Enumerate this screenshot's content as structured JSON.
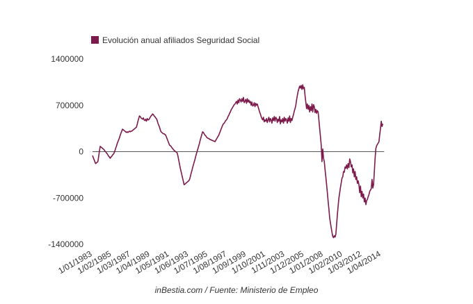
{
  "chart_data": {
    "type": "line",
    "series": [
      {
        "name": "Evolución anual afiliados Seguridad Social",
        "color": "#7b1a4b",
        "values": [
          -60000,
          -90000,
          -120000,
          -150000,
          -180000,
          -170000,
          -160000,
          -150000,
          -70000,
          10000,
          80000,
          70000,
          60000,
          50000,
          40000,
          30000,
          10000,
          0,
          -20000,
          -30000,
          -50000,
          -70000,
          -80000,
          -100000,
          -80000,
          -70000,
          -50000,
          -40000,
          -20000,
          10000,
          50000,
          80000,
          120000,
          150000,
          180000,
          210000,
          250000,
          280000,
          310000,
          340000,
          330000,
          320000,
          310000,
          300000,
          290000,
          300000,
          290000,
          300000,
          310000,
          300000,
          310000,
          310000,
          320000,
          330000,
          340000,
          350000,
          360000,
          370000,
          410000,
          460000,
          500000,
          540000,
          530000,
          510000,
          500000,
          490000,
          510000,
          480000,
          470000,
          490000,
          460000,
          500000,
          480000,
          480000,
          500000,
          520000,
          540000,
          550000,
          570000,
          560000,
          540000,
          530000,
          510000,
          500000,
          470000,
          430000,
          400000,
          370000,
          330000,
          300000,
          290000,
          280000,
          270000,
          270000,
          260000,
          250000,
          220000,
          190000,
          160000,
          130000,
          100000,
          90000,
          80000,
          60000,
          50000,
          30000,
          20000,
          10000,
          0,
          -10000,
          -20000,
          -70000,
          -130000,
          -190000,
          -250000,
          -300000,
          -350000,
          -400000,
          -450000,
          -500000,
          -490000,
          -480000,
          -470000,
          -460000,
          -450000,
          -440000,
          -420000,
          -380000,
          -330000,
          -290000,
          -240000,
          -200000,
          -160000,
          -120000,
          -70000,
          -30000,
          10000,
          50000,
          90000,
          130000,
          180000,
          220000,
          260000,
          300000,
          290000,
          270000,
          250000,
          240000,
          220000,
          210000,
          200000,
          200000,
          190000,
          180000,
          180000,
          170000,
          170000,
          160000,
          160000,
          150000,
          170000,
          190000,
          210000,
          230000,
          250000,
          280000,
          310000,
          340000,
          370000,
          400000,
          420000,
          430000,
          450000,
          470000,
          480000,
          500000,
          530000,
          550000,
          580000,
          600000,
          630000,
          650000,
          670000,
          690000,
          710000,
          720000,
          740000,
          760000,
          720000,
          780000,
          740000,
          800000,
          780000,
          750000,
          800000,
          760000,
          820000,
          740000,
          760000,
          790000,
          730000,
          800000,
          750000,
          780000,
          740000,
          760000,
          700000,
          750000,
          690000,
          700000,
          740000,
          680000,
          730000,
          700000,
          720000,
          680000,
          640000,
          600000,
          570000,
          530000,
          500000,
          480000,
          520000,
          450000,
          480000,
          460000,
          500000,
          440000,
          480000,
          520000,
          450000,
          500000,
          480000,
          430000,
          510000,
          470000,
          530000,
          460000,
          520000,
          500000,
          440000,
          490000,
          460000,
          530000,
          420000,
          480000,
          450000,
          500000,
          430000,
          520000,
          460000,
          500000,
          480000,
          430000,
          510000,
          460000,
          540000,
          440000,
          500000,
          470000,
          520000,
          560000,
          610000,
          650000,
          700000,
          780000,
          850000,
          910000,
          950000,
          990000,
          960000,
          1000000,
          940000,
          1010000,
          950000,
          970000,
          850000,
          750000,
          650000,
          720000,
          640000,
          700000,
          600000,
          680000,
          620000,
          720000,
          600000,
          710000,
          680000,
          590000,
          640000,
          580000,
          620000,
          600000,
          480000,
          350000,
          230000,
          100000,
          -150000,
          40000,
          -100000,
          -150000,
          -270000,
          -380000,
          -500000,
          -620000,
          -750000,
          -870000,
          -1000000,
          -1080000,
          -1150000,
          -1220000,
          -1280000,
          -1300000,
          -1270000,
          -1290000,
          -1250000,
          -1100000,
          -950000,
          -820000,
          -700000,
          -620000,
          -540000,
          -470000,
          -400000,
          -380000,
          -300000,
          -310000,
          -230000,
          -250000,
          -200000,
          -260000,
          -180000,
          -240000,
          -110000,
          -150000,
          -230000,
          -200000,
          -320000,
          -260000,
          -380000,
          -300000,
          -420000,
          -380000,
          -480000,
          -440000,
          -500000,
          -620000,
          -520000,
          -680000,
          -600000,
          -700000,
          -640000,
          -760000,
          -700000,
          -800000,
          -740000,
          -720000,
          -680000,
          -650000,
          -600000,
          -580000,
          -560000,
          -420000,
          -550000,
          -500000,
          -300000,
          -100000,
          50000,
          90000,
          110000,
          130000,
          150000,
          260000,
          350000,
          460000,
          380000,
          420000
        ]
      }
    ],
    "categories": [
      "1/01/1983",
      null,
      null,
      null,
      null,
      null,
      null,
      null,
      null,
      null,
      null,
      null,
      null,
      null,
      null,
      null,
      null,
      null,
      null,
      null,
      null,
      null,
      null,
      null,
      null,
      "1/02/1985",
      null,
      null,
      null,
      null,
      null,
      null,
      null,
      null,
      null,
      null,
      null,
      null,
      null,
      null,
      null,
      null,
      null,
      null,
      null,
      null,
      null,
      null,
      null,
      null,
      "1/03/1987",
      null,
      null,
      null,
      null,
      null,
      null,
      null,
      null,
      null,
      null,
      null,
      null,
      null,
      null,
      null,
      null,
      null,
      null,
      null,
      null,
      null,
      null,
      null,
      null,
      "1/04/1989",
      null,
      null,
      null,
      null,
      null,
      null,
      null,
      null,
      null,
      null,
      null,
      null,
      null,
      null,
      null,
      null,
      null,
      null,
      null,
      null,
      null,
      null,
      null,
      null,
      "1/05/1991",
      null,
      null,
      null,
      null,
      null,
      null,
      null,
      null,
      null,
      null,
      null,
      null,
      null,
      null,
      null,
      null,
      null,
      null,
      null,
      null,
      null,
      null,
      null,
      null,
      "1/06/1993",
      null,
      null,
      null,
      null,
      null,
      null,
      null,
      null,
      null,
      null,
      null,
      null,
      null,
      null,
      null,
      null,
      null,
      null,
      null,
      null,
      null,
      null,
      null,
      null,
      "1/07/1995",
      null,
      null,
      null,
      null,
      null,
      null,
      null,
      null,
      null,
      null,
      null,
      null,
      null,
      null,
      null,
      null,
      null,
      null,
      null,
      null,
      null,
      null,
      null,
      null,
      "1/08/1997",
      null,
      null,
      null,
      null,
      null,
      null,
      null,
      null,
      null,
      null,
      null,
      null,
      null,
      null,
      null,
      null,
      null,
      null,
      null,
      null,
      null,
      null,
      null,
      null,
      "1/09/1999",
      null,
      null,
      null,
      null,
      null,
      null,
      null,
      null,
      null,
      null,
      null,
      null,
      null,
      null,
      null,
      null,
      null,
      null,
      null,
      null,
      null,
      null,
      null,
      null,
      "1/10/2001",
      null,
      null,
      null,
      null,
      null,
      null,
      null,
      null,
      null,
      null,
      null,
      null,
      null,
      null,
      null,
      null,
      null,
      null,
      null,
      null,
      null,
      null,
      null,
      null,
      "1/11/2003",
      null,
      null,
      null,
      null,
      null,
      null,
      null,
      null,
      null,
      null,
      null,
      null,
      null,
      null,
      null,
      null,
      null,
      null,
      null,
      null,
      null,
      null,
      null,
      null,
      "1/12/2005",
      null,
      null,
      null,
      null,
      null,
      null,
      null,
      null,
      null,
      null,
      null,
      null,
      null,
      null,
      null,
      null,
      null,
      null,
      null,
      null,
      null,
      null,
      null,
      null,
      "1/01/2008",
      null,
      null,
      null,
      null,
      null,
      null,
      null,
      null,
      null,
      null,
      null,
      null,
      null,
      null,
      null,
      null,
      null,
      null,
      null,
      null,
      null,
      null,
      null,
      null,
      "1/02/2010",
      null,
      null,
      null,
      null,
      null,
      null,
      null,
      null,
      null,
      null,
      null,
      null,
      null,
      null,
      null,
      null,
      null,
      null,
      null,
      null,
      null,
      null,
      null,
      null,
      "1/03/2012",
      null,
      null,
      null,
      null,
      null,
      null,
      null,
      null,
      null,
      null,
      null,
      null,
      null,
      null,
      null,
      null,
      null,
      null,
      null,
      null,
      null,
      null,
      null,
      null,
      "1/04/2014",
      null,
      null
    ],
    "ylim": [
      -1400000,
      1400000
    ],
    "yticks": [
      1400000,
      700000,
      0,
      -700000,
      -1400000
    ],
    "source": "inBestia.com / Fuente: Ministerio de Empleo"
  }
}
